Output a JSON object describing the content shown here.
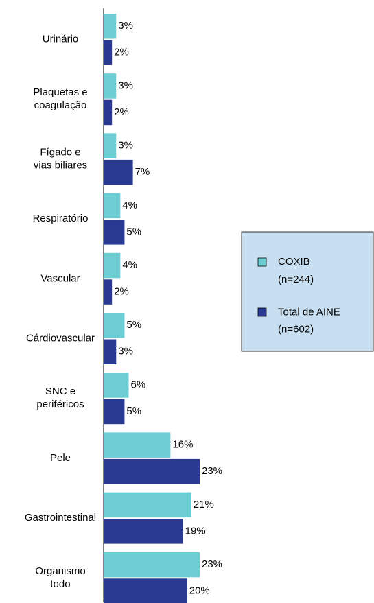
{
  "chart_data": {
    "type": "bar",
    "orientation": "horizontal",
    "categories": [
      "Urinário",
      "Plaquetas e\ncoagulação",
      "Fígado e\nvias biliares",
      "Respiratório",
      "Vascular",
      "Cárdiovascular",
      "SNC e\nperiféricos",
      "Pele",
      "Gastrointestinal",
      "Organismo\ntodo"
    ],
    "series": [
      {
        "name": "COXIB\n(n=244)",
        "color": "#6ecdd3",
        "values": [
          3,
          3,
          3,
          4,
          4,
          5,
          6,
          16,
          21,
          23
        ],
        "value_labels": [
          "3%",
          "3%",
          "3%",
          "4%",
          "4%",
          "5%",
          "6%",
          "16%",
          "21%",
          "23%"
        ]
      },
      {
        "name": "Total de AINE\n(n=602)",
        "color": "#2a3a92",
        "values": [
          2,
          2,
          7,
          5,
          2,
          3,
          5,
          23,
          19,
          20
        ],
        "value_labels": [
          "2%",
          "2%",
          "7%",
          "5%",
          "2%",
          "3%",
          "5%",
          "23%",
          "19%",
          "20%"
        ]
      }
    ],
    "legend": "right"
  }
}
